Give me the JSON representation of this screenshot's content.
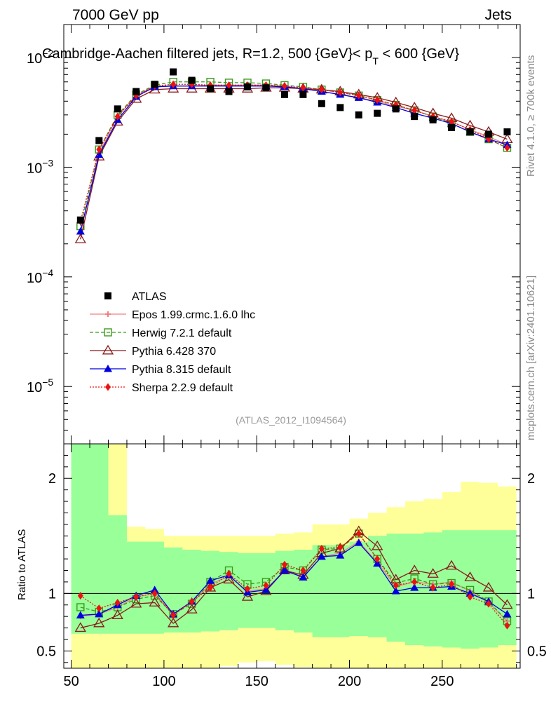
{
  "header": {
    "left": "7000 GeV pp",
    "right": "Jets",
    "title_main": "Cambridge-Aachen filtered jets, R=1.2, 500 {GeV}< p",
    "title_sub": "T",
    "title_end": " < 600 {GeV}",
    "watermark": "(ATLAS_2012_I1094564)",
    "side_rivet": "Rivet 4.1.0, ≥ 700k events",
    "side_mcplots": "mcplots.cern.ch [arXiv:2401.10621]"
  },
  "colors": {
    "atlas": "#000000",
    "epos": "#f08080",
    "herwig": "#3a9a1a",
    "pythia6": "#8b1a1a",
    "pythia8": "#0000dd",
    "sherpa": "#ee1111",
    "band_inner": "#99ff99",
    "band_outer": "#ffff99"
  },
  "chart_data": {
    "type": "scatter",
    "x": [
      55,
      65,
      75,
      85,
      95,
      105,
      115,
      125,
      135,
      145,
      155,
      165,
      175,
      185,
      195,
      205,
      215,
      225,
      235,
      245,
      255,
      265,
      275,
      285
    ],
    "xlim": [
      46,
      292
    ],
    "xticks": [
      50,
      100,
      150,
      200,
      250
    ],
    "main": {
      "ylim": [
        3e-06,
        0.02
      ],
      "ytick_labels": [
        {
          "v": 1e-05,
          "m": "10",
          "e": "−5"
        },
        {
          "v": 0.0001,
          "m": "10",
          "e": "−4"
        },
        {
          "v": 0.001,
          "m": "10",
          "e": "−3"
        },
        {
          "v": 0.01,
          "m": "10",
          "e": "−2"
        }
      ],
      "series": [
        {
          "name": "ATLAS",
          "key": "atlas",
          "marker": "square",
          "values": [
            0.00033,
            0.00175,
            0.0034,
            0.0049,
            0.0057,
            0.0074,
            0.0062,
            0.0052,
            0.0049,
            0.0054,
            0.0053,
            0.0046,
            0.0046,
            0.0038,
            0.0035,
            0.003,
            0.0031,
            0.0034,
            0.0029,
            0.0027,
            0.0023,
            0.0021,
            0.002,
            0.0021
          ]
        },
        {
          "name": "Epos 1.99.crmc.1.6.0 lhc",
          "key": "epos",
          "marker": "cross",
          "line": "solid",
          "values": [
            0.00025,
            0.00135,
            0.0029,
            0.0045,
            0.0055,
            0.0055,
            0.0055,
            0.0056,
            0.0056,
            0.0056,
            0.0056,
            0.0055,
            0.0052,
            0.0049,
            0.0046,
            0.0043,
            0.004,
            0.0036,
            0.0033,
            0.0029,
            0.0026,
            0.0022,
            0.0019,
            0.0016
          ]
        },
        {
          "name": "Herwig 7.2.1 default",
          "key": "herwig",
          "marker": "open-square",
          "line": "dashed",
          "values": [
            0.00029,
            0.00145,
            0.003,
            0.0046,
            0.0056,
            0.006,
            0.006,
            0.006,
            0.0059,
            0.0059,
            0.0058,
            0.0056,
            0.0054,
            0.0051,
            0.0048,
            0.0045,
            0.0041,
            0.0037,
            0.0033,
            0.0029,
            0.0025,
            0.0021,
            0.0018,
            0.0015
          ]
        },
        {
          "name": "Pythia 6.428 370",
          "key": "pythia6",
          "marker": "open-triangle",
          "line": "solid",
          "values": [
            0.00022,
            0.00125,
            0.0026,
            0.0042,
            0.0051,
            0.0052,
            0.0052,
            0.0052,
            0.0052,
            0.0052,
            0.0053,
            0.0053,
            0.0052,
            0.0051,
            0.0049,
            0.0046,
            0.0043,
            0.0039,
            0.0035,
            0.0031,
            0.0028,
            0.0024,
            0.0021,
            0.0018
          ]
        },
        {
          "name": "Pythia 8.315 default",
          "key": "pythia8",
          "marker": "triangle",
          "line": "solid",
          "values": [
            0.00026,
            0.0013,
            0.0027,
            0.0044,
            0.0054,
            0.0055,
            0.0055,
            0.0055,
            0.0055,
            0.0055,
            0.0055,
            0.0054,
            0.0052,
            0.0049,
            0.0046,
            0.0043,
            0.0039,
            0.0035,
            0.0031,
            0.0028,
            0.0025,
            0.0021,
            0.0018,
            0.0016
          ]
        },
        {
          "name": "Sherpa 2.2.9 default",
          "key": "sherpa",
          "marker": "diamond",
          "line": "dotted",
          "values": [
            0.00032,
            0.00145,
            0.0029,
            0.0045,
            0.0055,
            0.0057,
            0.0057,
            0.0056,
            0.0056,
            0.0056,
            0.0056,
            0.0055,
            0.0053,
            0.0051,
            0.0048,
            0.0045,
            0.0041,
            0.0037,
            0.0033,
            0.0029,
            0.0026,
            0.0022,
            0.0018,
            0.0015
          ]
        }
      ],
      "legend_position": "middle-left"
    },
    "ratio": {
      "ylabel": "Ratio to ATLAS",
      "ylim": [
        0.35,
        2.3
      ],
      "yticks": [
        0.5,
        1,
        2
      ],
      "ytick_labels": [
        "0.5",
        "1",
        "2"
      ],
      "reference_line": 1,
      "band_inner": {
        "lo": [
          0.65,
          0.65,
          0.65,
          0.65,
          0.65,
          0.66,
          0.66,
          0.67,
          0.68,
          0.7,
          0.7,
          0.68,
          0.66,
          0.62,
          0.62,
          0.63,
          0.62,
          0.58,
          0.55,
          0.54,
          0.53,
          0.52,
          0.53,
          0.55
        ],
        "hi": [
          2.3,
          2.3,
          1.68,
          1.45,
          1.45,
          1.4,
          1.38,
          1.37,
          1.36,
          1.35,
          1.35,
          1.37,
          1.38,
          1.42,
          1.42,
          1.45,
          1.5,
          1.52,
          1.52,
          1.53,
          1.55,
          1.55,
          1.55,
          1.55
        ]
      },
      "band_outer": {
        "lo": [
          0.35,
          0.35,
          0.35,
          0.35,
          0.35,
          0.35,
          0.35,
          0.35,
          0.37,
          0.4,
          0.41,
          0.38,
          0.36,
          0.35,
          0.35,
          0.35,
          0.35,
          0.35,
          0.35,
          0.35,
          0.35,
          0.35,
          0.35,
          0.35
        ],
        "hi": [
          2.3,
          2.3,
          2.3,
          1.58,
          1.56,
          1.5,
          1.5,
          1.5,
          1.5,
          1.5,
          1.5,
          1.52,
          1.53,
          1.6,
          1.6,
          1.65,
          1.7,
          1.75,
          1.8,
          1.82,
          1.88,
          1.97,
          1.96,
          1.93
        ]
      },
      "series": [
        {
          "key": "epos",
          "values": [
            0.8,
            0.82,
            0.88,
            0.97,
            1.0,
            0.82,
            0.92,
            1.08,
            1.15,
            1.02,
            1.04,
            1.19,
            1.15,
            1.32,
            1.35,
            1.45,
            1.27,
            1.06,
            1.1,
            1.08,
            1.1,
            1.02,
            0.92,
            0.76
          ]
        },
        {
          "key": "herwig",
          "values": [
            0.88,
            0.84,
            0.88,
            0.95,
            0.98,
            0.82,
            0.91,
            1.1,
            1.2,
            1.08,
            1.1,
            1.23,
            1.2,
            1.38,
            1.39,
            1.52,
            1.3,
            1.09,
            1.13,
            1.08,
            1.09,
            1.03,
            0.93,
            0.76
          ]
        },
        {
          "key": "pythia6",
          "values": [
            0.7,
            0.74,
            0.81,
            0.91,
            0.92,
            0.74,
            0.86,
            1.05,
            1.12,
            0.97,
            1.02,
            1.2,
            1.16,
            1.35,
            1.39,
            1.54,
            1.41,
            1.12,
            1.2,
            1.17,
            1.24,
            1.14,
            1.05,
            0.9
          ]
        },
        {
          "key": "pythia8",
          "values": [
            0.81,
            0.82,
            0.9,
            0.98,
            1.03,
            0.82,
            0.93,
            1.11,
            1.16,
            1.01,
            1.03,
            1.2,
            1.14,
            1.32,
            1.33,
            1.44,
            1.26,
            1.02,
            1.05,
            1.05,
            1.06,
            1.0,
            0.93,
            0.82
          ]
        },
        {
          "key": "sherpa",
          "values": [
            0.98,
            0.87,
            0.92,
            0.97,
            1.0,
            0.81,
            0.93,
            1.05,
            1.17,
            1.04,
            1.07,
            1.25,
            1.2,
            1.39,
            1.4,
            1.52,
            1.3,
            1.07,
            1.1,
            1.05,
            1.08,
            0.97,
            0.91,
            0.72
          ]
        }
      ]
    }
  }
}
